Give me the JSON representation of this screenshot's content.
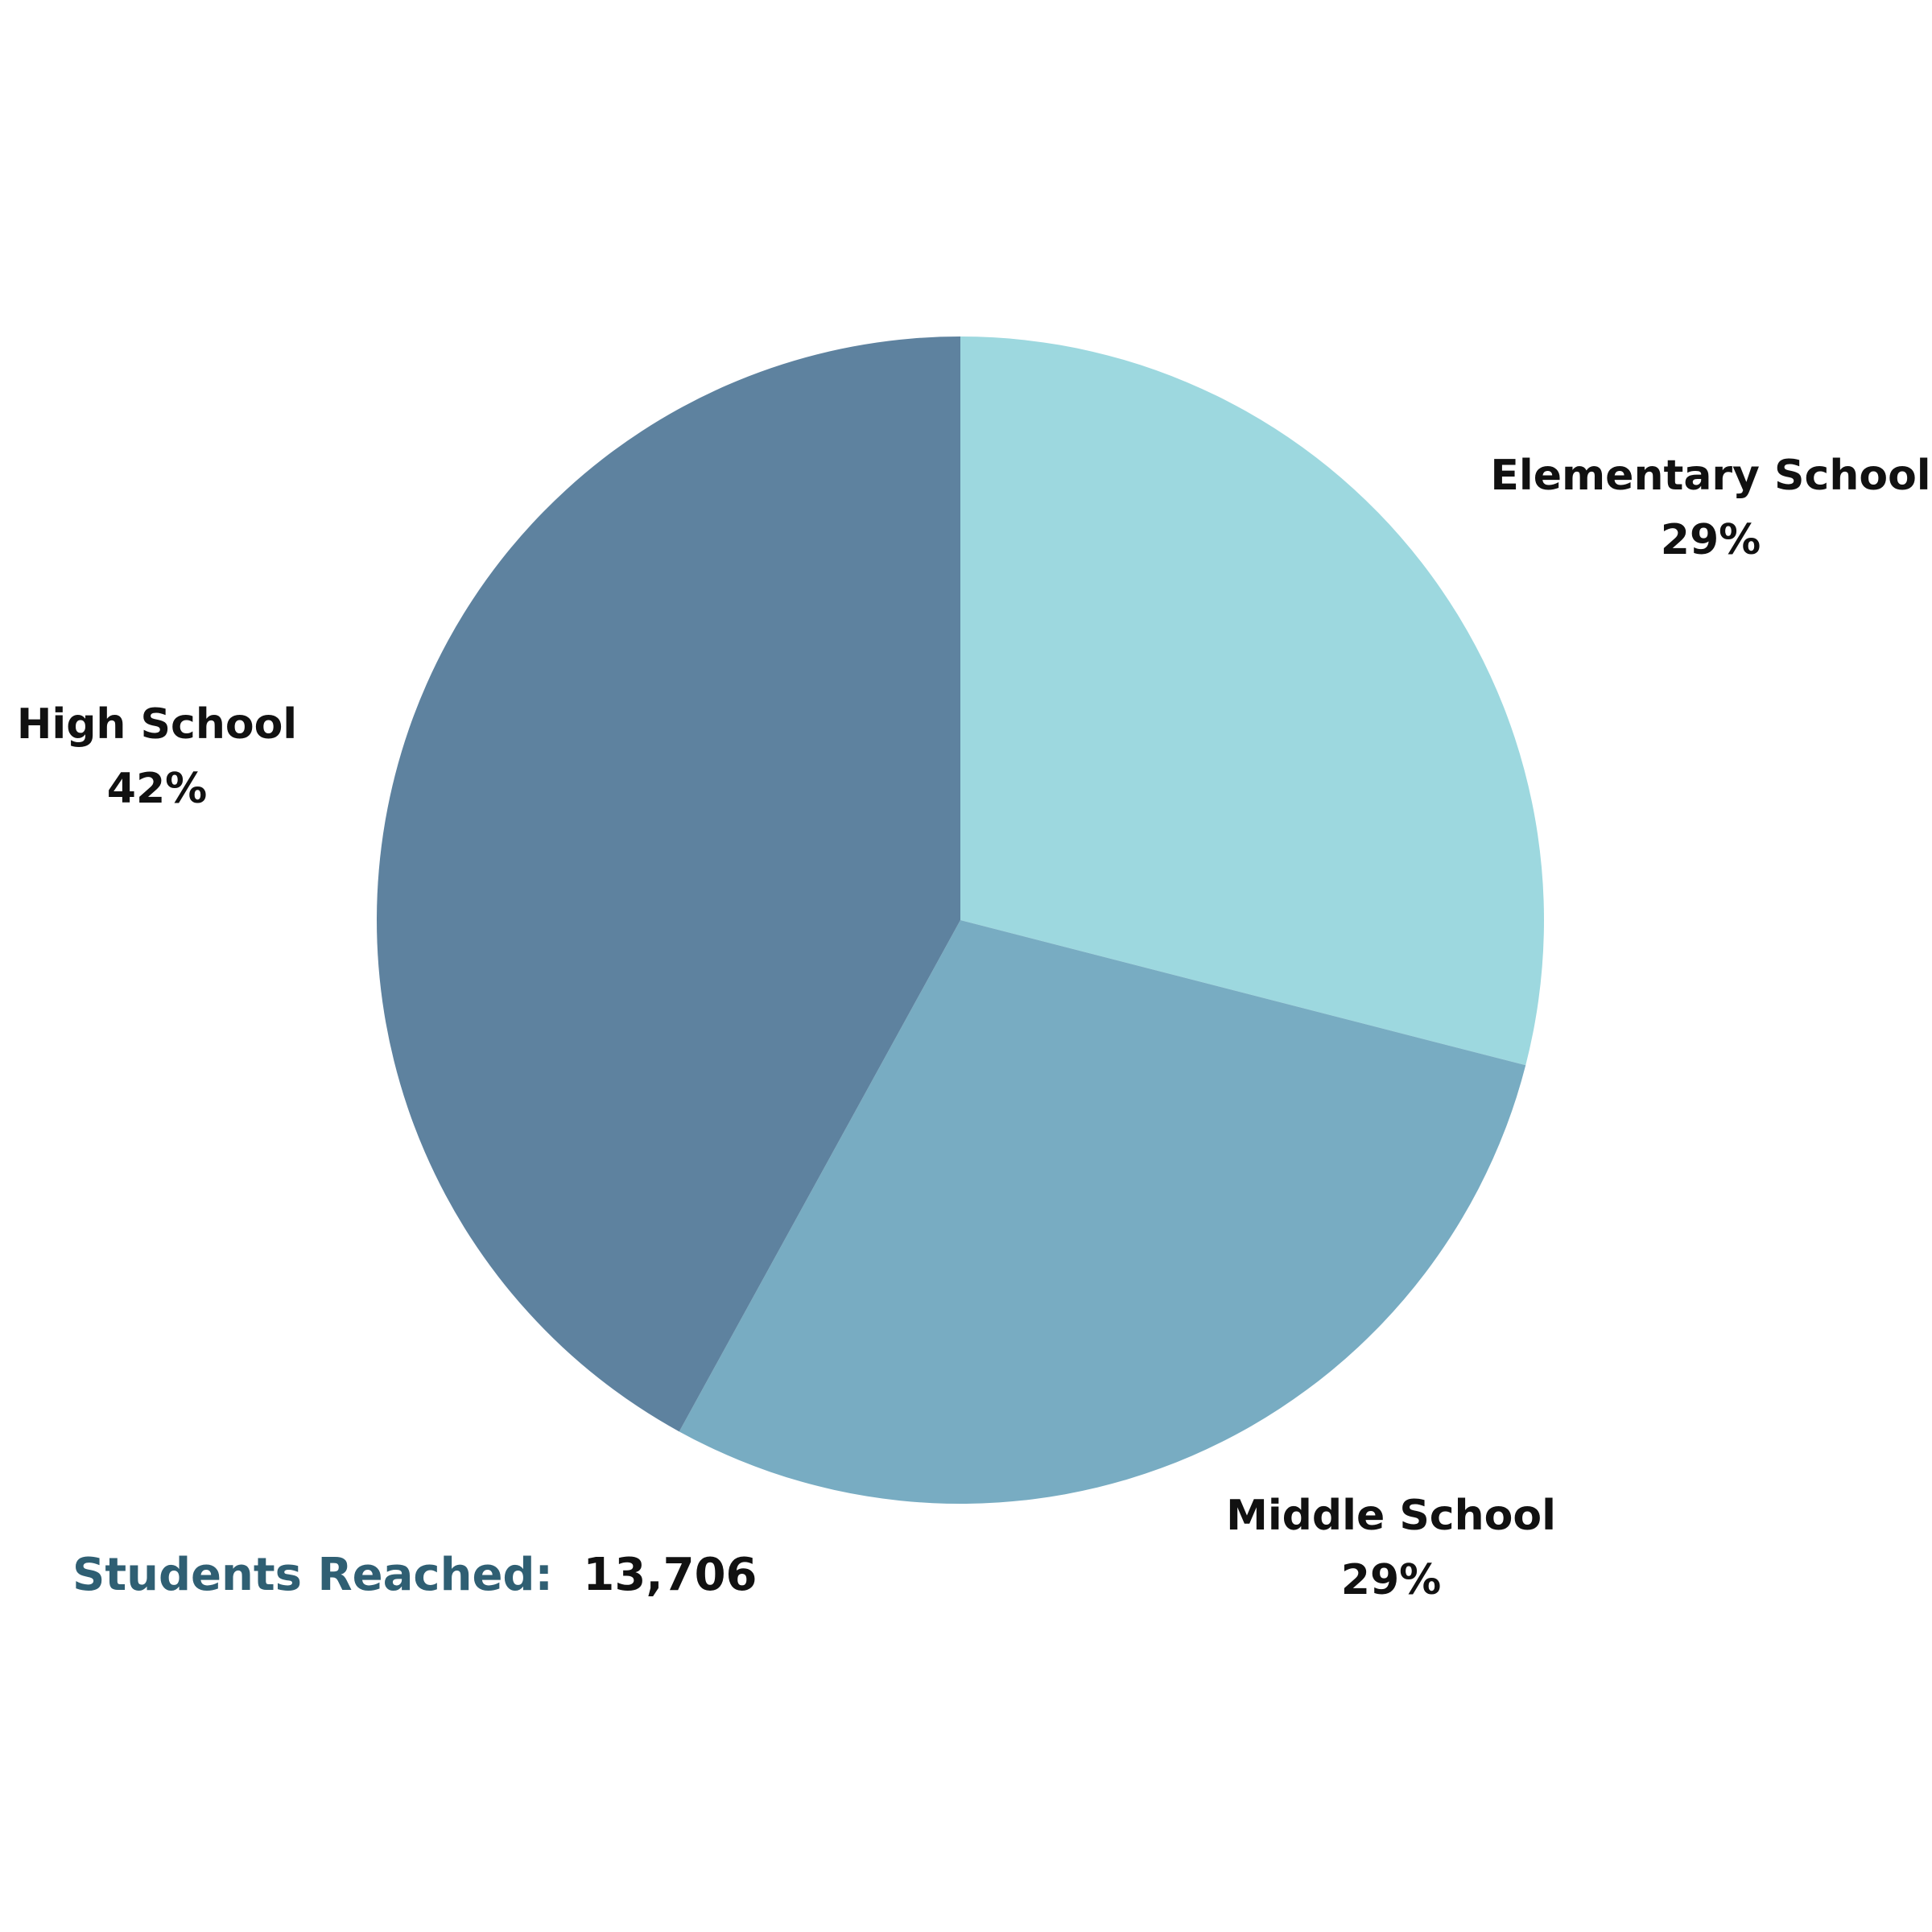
{
  "chart_data": {
    "type": "pie",
    "categories": [
      "Elementary School",
      "Middle School",
      "High School"
    ],
    "values": [
      29,
      29,
      42
    ],
    "value_labels": [
      "29%",
      "29%",
      "42%"
    ],
    "colors": [
      "#9dd8df",
      "#78acc2",
      "#5e829f"
    ],
    "start_angle_deg": 0,
    "direction": "clockwise"
  },
  "footer": {
    "label": "Students Reached:",
    "value": "13,706",
    "label_color": "#2f5f73",
    "value_color": "#111111"
  }
}
